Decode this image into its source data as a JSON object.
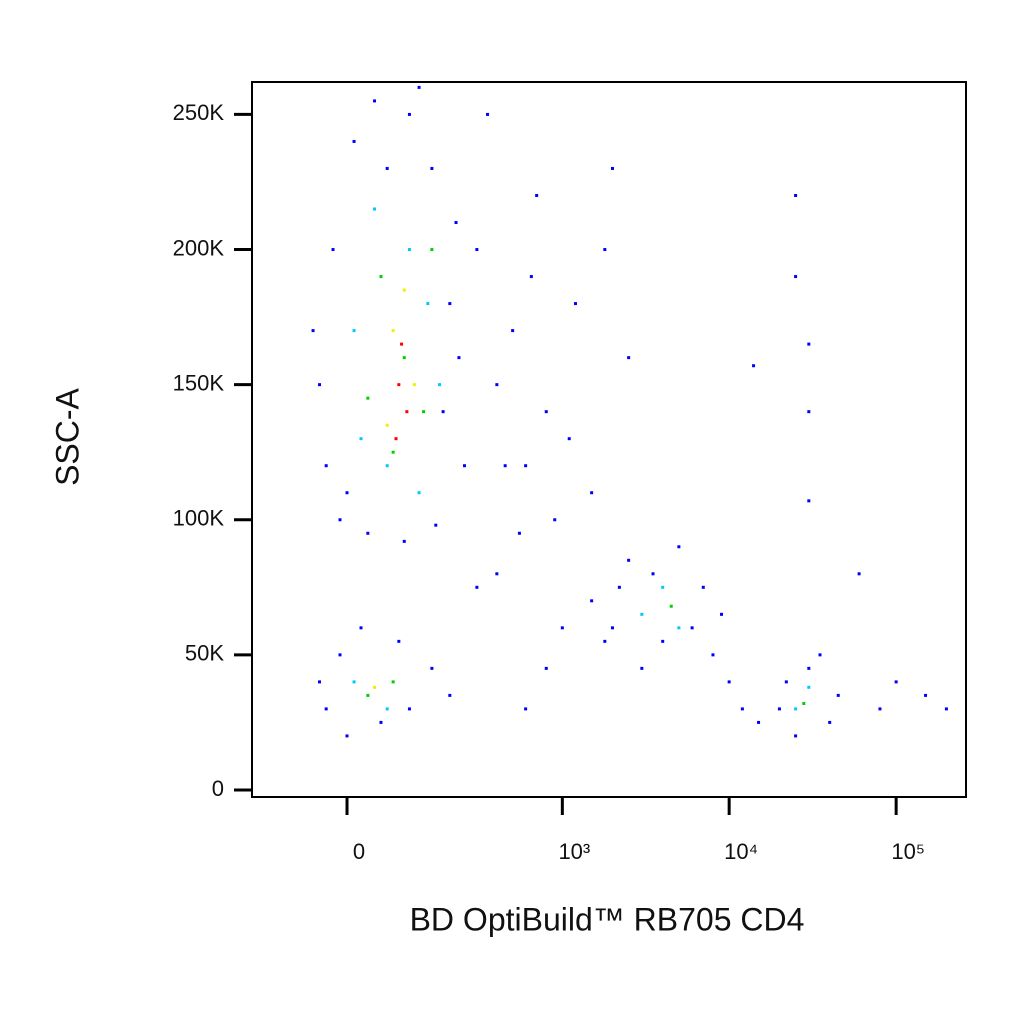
{
  "chart_data": {
    "type": "scatter",
    "x_label": "BD OptiBuild™ RB705 CD4",
    "y_label": "SSC-A",
    "xscale": "biexponential",
    "xlim": [
      -177,
      262000
    ],
    "ylim": [
      -2600,
      262000
    ],
    "xticks": [
      0,
      {
        "value": 1000,
        "label": "10³"
      },
      {
        "value": 10000,
        "label": "10⁴"
      },
      {
        "value": 100000,
        "label": "10⁵"
      }
    ],
    "yticks": [
      0,
      {
        "value": 50000,
        "label": "50K"
      },
      {
        "value": 100000,
        "label": "100K"
      },
      {
        "value": 150000,
        "label": "150K"
      },
      {
        "value": 200000,
        "label": "200K"
      },
      {
        "value": 250000,
        "label": "250K"
      }
    ],
    "series": [
      {
        "color": "#0000ff",
        "x": [
          -30,
          -20,
          10,
          40,
          100,
          150,
          200,
          250,
          -40,
          -10,
          30,
          90,
          160,
          220,
          -50,
          0,
          120,
          60,
          180,
          230,
          300,
          400,
          500,
          600,
          700,
          800,
          900,
          1200,
          1500,
          2000,
          2500,
          350,
          450,
          550,
          650,
          1100,
          1800,
          400,
          300,
          1500,
          2000,
          2500,
          3000,
          3500,
          4000,
          5000,
          6000,
          7000,
          8000,
          1800,
          9000,
          2200,
          -40,
          -30,
          0,
          50,
          100,
          150,
          80,
          20,
          -10,
          200,
          20000,
          25000,
          30000,
          40000,
          45000,
          35000,
          22000,
          10000,
          12000,
          15000,
          600,
          800,
          1000,
          100000,
          150000,
          200000,
          60000,
          25000,
          25000,
          30000,
          30000,
          30000,
          14000,
          80000
        ],
        "values": [
          120000,
          200000,
          240000,
          255000,
          250000,
          230000,
          180000,
          120000,
          150000,
          100000,
          95000,
          92000,
          98000,
          210000,
          170000,
          110000,
          260000,
          230000,
          140000,
          160000,
          200000,
          150000,
          170000,
          120000,
          220000,
          140000,
          100000,
          180000,
          110000,
          230000,
          160000,
          250000,
          120000,
          95000,
          190000,
          130000,
          200000,
          80000,
          75000,
          70000,
          60000,
          85000,
          45000,
          80000,
          55000,
          90000,
          60000,
          75000,
          50000,
          55000,
          65000,
          75000,
          40000,
          30000,
          20000,
          25000,
          30000,
          45000,
          55000,
          60000,
          50000,
          35000,
          30000,
          20000,
          45000,
          25000,
          35000,
          50000,
          40000,
          40000,
          30000,
          25000,
          30000,
          45000,
          60000,
          40000,
          35000,
          30000,
          80000,
          220000,
          190000,
          165000,
          140000,
          107000,
          157000,
          30000
        ]
      },
      {
        "color": "#00c8ff",
        "x": [
          20,
          60,
          100,
          140,
          40,
          170,
          10,
          120,
          10,
          60,
          3000,
          4000,
          5000,
          25000,
          30000
        ],
        "values": [
          130000,
          120000,
          200000,
          180000,
          215000,
          150000,
          170000,
          110000,
          40000,
          30000,
          65000,
          75000,
          60000,
          30000,
          38000
        ]
      },
      {
        "color": "#00d000",
        "x": [
          50,
          90,
          130,
          30,
          150,
          70,
          30,
          70,
          4500,
          28000
        ],
        "values": [
          190000,
          160000,
          140000,
          145000,
          200000,
          125000,
          35000,
          40000,
          68000,
          32000
        ]
      },
      {
        "color": "#f0f000",
        "x": [
          70,
          110,
          90,
          60,
          40
        ],
        "values": [
          170000,
          150000,
          185000,
          135000,
          38000
        ]
      },
      {
        "color": "#ff0000",
        "x": [
          80,
          95,
          85,
          75
        ],
        "values": [
          150000,
          140000,
          165000,
          130000
        ]
      }
    ]
  }
}
